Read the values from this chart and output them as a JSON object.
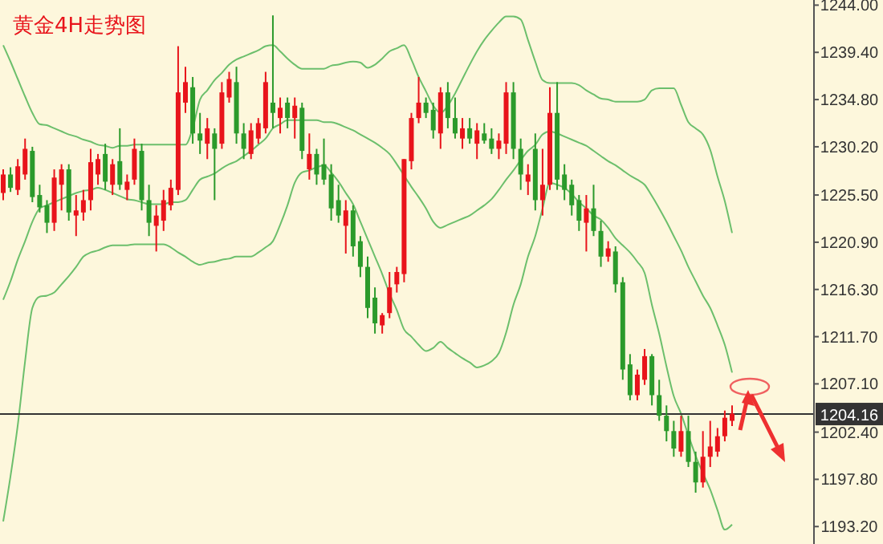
{
  "chart_data": {
    "type": "candlestick",
    "title": "黄金4H走势图",
    "categories": [
      null,
      null,
      null,
      null,
      null,
      null,
      null,
      null,
      null,
      null,
      null,
      null,
      null,
      null,
      null,
      null,
      null,
      null,
      null,
      null,
      null,
      null,
      null,
      null,
      null,
      null,
      null,
      null,
      null,
      null,
      null,
      null,
      null,
      null,
      null,
      null,
      null,
      null,
      null,
      null,
      null,
      null,
      null,
      null,
      null,
      null,
      null,
      null,
      null,
      null,
      null,
      null,
      null,
      null,
      null,
      null,
      null,
      null,
      null,
      null,
      null,
      null,
      null,
      null,
      null,
      null,
      null,
      null,
      null,
      null,
      null,
      null,
      null,
      null,
      null,
      null,
      null,
      null,
      null,
      null,
      null,
      null,
      null,
      null,
      null,
      null,
      null,
      null,
      null,
      null,
      null,
      null,
      null,
      null,
      null,
      null,
      null,
      null,
      null,
      null,
      null
    ],
    "ohlc": [
      [
        1225.7,
        1228.0,
        1225.0,
        1227.5
      ],
      [
        1227.5,
        1228.2,
        1225.8,
        1226.2
      ],
      [
        1226.0,
        1229.0,
        1225.5,
        1228.3
      ],
      [
        1227.5,
        1231.0,
        1227.0,
        1230.0
      ],
      [
        1229.8,
        1230.2,
        1224.8,
        1225.3
      ],
      [
        1225.5,
        1226.5,
        1223.8,
        1224.3
      ],
      [
        1224.5,
        1225.0,
        1221.8,
        1222.8
      ],
      [
        1222.8,
        1228.0,
        1222.0,
        1227.2
      ],
      [
        1226.5,
        1228.5,
        1224.0,
        1228.0
      ],
      [
        1228.0,
        1228.5,
        1223.0,
        1223.8
      ],
      [
        1223.5,
        1225.5,
        1221.5,
        1224.0
      ],
      [
        1223.8,
        1226.0,
        1223.0,
        1225.0
      ],
      [
        1225.0,
        1230.0,
        1224.0,
        1228.7
      ],
      [
        1227.5,
        1229.5,
        1226.5,
        1229.0
      ],
      [
        1229.5,
        1230.5,
        1226.0,
        1226.8
      ],
      [
        1226.5,
        1229.0,
        1225.5,
        1228.5
      ],
      [
        1228.8,
        1232.0,
        1226.0,
        1226.5
      ],
      [
        1226.0,
        1227.5,
        1225.0,
        1226.8
      ],
      [
        1227.0,
        1231.0,
        1226.5,
        1230.0
      ],
      [
        1229.8,
        1230.5,
        1224.0,
        1225.0
      ],
      [
        1225.0,
        1226.5,
        1221.5,
        1222.8
      ],
      [
        1222.5,
        1224.5,
        1220.0,
        1223.5
      ],
      [
        1223.0,
        1226.0,
        1222.0,
        1225.0
      ],
      [
        1224.5,
        1227.0,
        1224.0,
        1226.2
      ],
      [
        1226.0,
        1240.0,
        1225.5,
        1235.5
      ],
      [
        1234.5,
        1238.0,
        1233.5,
        1236.5
      ],
      [
        1236.0,
        1237.0,
        1230.5,
        1231.5
      ],
      [
        1231.5,
        1233.5,
        1229.5,
        1230.8
      ],
      [
        1230.5,
        1233.0,
        1229.0,
        1232.0
      ],
      [
        1231.5,
        1232.0,
        1225.0,
        1230.0
      ],
      [
        1230.5,
        1236.5,
        1230.0,
        1235.5
      ],
      [
        1235.0,
        1237.5,
        1234.5,
        1236.8
      ],
      [
        1236.5,
        1238.0,
        1230.5,
        1231.5
      ],
      [
        1231.5,
        1232.5,
        1229.0,
        1230.0
      ],
      [
        1229.5,
        1232.5,
        1229.0,
        1231.8
      ],
      [
        1231.0,
        1233.0,
        1230.5,
        1232.5
      ],
      [
        1232.0,
        1237.5,
        1231.5,
        1236.5
      ],
      [
        1234.5,
        1243.0,
        1232.0,
        1233.5
      ],
      [
        1233.0,
        1235.0,
        1231.5,
        1234.0
      ],
      [
        1234.5,
        1235.0,
        1232.0,
        1233.0
      ],
      [
        1233.0,
        1235.0,
        1231.0,
        1234.2
      ],
      [
        1234.0,
        1234.5,
        1229.0,
        1229.8
      ],
      [
        1228.0,
        1231.5,
        1227.0,
        1229.5
      ],
      [
        1229.5,
        1230.0,
        1226.5,
        1227.5
      ],
      [
        1228.5,
        1231.0,
        1226.5,
        1227.0
      ],
      [
        1227.5,
        1228.5,
        1223.0,
        1224.2
      ],
      [
        1225.0,
        1226.5,
        1222.8,
        1223.5
      ],
      [
        1222.5,
        1225.0,
        1219.8,
        1224.0
      ],
      [
        1224.0,
        1224.5,
        1219.5,
        1220.5
      ],
      [
        1221.0,
        1221.5,
        1217.5,
        1218.5
      ],
      [
        1218.5,
        1219.5,
        1213.5,
        1214.5
      ],
      [
        1215.5,
        1216.5,
        1212.0,
        1213.0
      ],
      [
        1212.8,
        1214.0,
        1212.0,
        1213.8
      ],
      [
        1214.0,
        1218.0,
        1213.5,
        1216.5
      ],
      [
        1216.8,
        1218.5,
        1216.0,
        1218.0
      ],
      [
        1217.8,
        1229.0,
        1217.0,
        1229.0
      ],
      [
        1228.8,
        1233.5,
        1228.0,
        1233.0
      ],
      [
        1233.0,
        1237.0,
        1232.5,
        1234.5
      ],
      [
        1234.5,
        1235.0,
        1233.0,
        1233.5
      ],
      [
        1233.8,
        1234.5,
        1231.0,
        1231.8
      ],
      [
        1231.5,
        1236.0,
        1230.0,
        1235.5
      ],
      [
        1235.5,
        1236.5,
        1232.0,
        1233.0
      ],
      [
        1233.0,
        1235.0,
        1231.0,
        1231.5
      ],
      [
        1231.0,
        1233.0,
        1230.0,
        1232.0
      ],
      [
        1232.0,
        1233.0,
        1230.5,
        1231.0
      ],
      [
        1230.5,
        1232.5,
        1229.0,
        1231.8
      ],
      [
        1231.5,
        1232.5,
        1230.5,
        1230.8
      ],
      [
        1231.0,
        1232.0,
        1229.5,
        1230.0
      ],
      [
        1230.0,
        1231.5,
        1229.0,
        1230.8
      ],
      [
        1230.5,
        1236.5,
        1229.5,
        1235.5
      ],
      [
        1235.5,
        1236.5,
        1229.0,
        1230.0
      ],
      [
        1230.0,
        1231.0,
        1226.0,
        1227.5
      ],
      [
        1226.8,
        1228.5,
        1225.5,
        1227.5
      ],
      [
        1230.0,
        1231.5,
        1224.0,
        1225.0
      ],
      [
        1225.0,
        1230.0,
        1223.5,
        1226.5
      ],
      [
        1226.5,
        1236.0,
        1226.0,
        1233.5
      ],
      [
        1233.5,
        1236.5,
        1226.0,
        1227.0
      ],
      [
        1227.5,
        1228.5,
        1225.0,
        1226.0
      ],
      [
        1226.5,
        1227.0,
        1223.5,
        1224.5
      ],
      [
        1225.0,
        1225.5,
        1222.0,
        1223.0
      ],
      [
        1222.8,
        1225.5,
        1220.0,
        1224.2
      ],
      [
        1224.2,
        1226.5,
        1221.5,
        1222.0
      ],
      [
        1222.0,
        1223.0,
        1218.5,
        1219.5
      ],
      [
        1219.5,
        1221.0,
        1219.0,
        1220.3
      ],
      [
        1220.0,
        1220.5,
        1216.0,
        1216.8
      ],
      [
        1217.0,
        1217.5,
        1207.5,
        1208.5
      ],
      [
        1209.0,
        1210.0,
        1205.5,
        1206.0
      ],
      [
        1206.0,
        1208.5,
        1205.5,
        1208.0
      ],
      [
        1207.5,
        1210.5,
        1207.0,
        1209.8
      ],
      [
        1209.8,
        1210.0,
        1205.0,
        1206.0
      ],
      [
        1206.0,
        1207.5,
        1203.5,
        1204.0
      ],
      [
        1204.0,
        1205.0,
        1201.5,
        1202.5
      ],
      [
        1202.5,
        1203.5,
        1200.0,
        1200.8
      ],
      [
        1200.5,
        1204.0,
        1200.0,
        1202.5
      ],
      [
        1202.5,
        1204.0,
        1199.0,
        1199.5
      ],
      [
        1199.5,
        1200.5,
        1196.5,
        1197.5
      ],
      [
        1197.5,
        1202.5,
        1197.0,
        1200.0
      ],
      [
        1200.0,
        1203.5,
        1199.0,
        1201.0
      ],
      [
        1200.5,
        1202.8,
        1200.0,
        1202.0
      ],
      [
        1202.0,
        1204.5,
        1201.5,
        1203.8
      ],
      [
        1203.5,
        1205.0,
        1203.0,
        1204.2
      ]
    ],
    "colors": [
      "#e8141b",
      "#2b9a2b",
      "#e8141b",
      "#e8141b",
      "#2b9a2b",
      "#2b9a2b",
      "#2b9a2b",
      "#e8141b",
      "#e8141b",
      "#2b9a2b",
      "#e8141b",
      "#e8141b",
      "#e8141b",
      "#e8141b",
      "#2b9a2b",
      "#e8141b",
      "#2b9a2b",
      "#e8141b",
      "#e8141b",
      "#2b9a2b",
      "#2b9a2b",
      "#e8141b",
      "#e8141b",
      "#e8141b",
      "#e8141b",
      "#e8141b",
      "#2b9a2b",
      "#2b9a2b",
      "#e8141b",
      "#2b9a2b",
      "#e8141b",
      "#e8141b",
      "#2b9a2b",
      "#2b9a2b",
      "#e8141b",
      "#e8141b",
      "#e8141b",
      "#2b9a2b",
      "#e8141b",
      "#2b9a2b",
      "#e8141b",
      "#2b9a2b",
      "#e8141b",
      "#2b9a2b",
      "#2b9a2b",
      "#2b9a2b",
      "#2b9a2b",
      "#e8141b",
      "#2b9a2b",
      "#2b9a2b",
      "#2b9a2b",
      "#2b9a2b",
      "#e8141b",
      "#e8141b",
      "#e8141b",
      "#e8141b",
      "#e8141b",
      "#e8141b",
      "#2b9a2b",
      "#2b9a2b",
      "#e8141b",
      "#2b9a2b",
      "#2b9a2b",
      "#e8141b",
      "#2b9a2b",
      "#e8141b",
      "#2b9a2b",
      "#2b9a2b",
      "#e8141b",
      "#e8141b",
      "#2b9a2b",
      "#2b9a2b",
      "#e8141b",
      "#2b9a2b",
      "#e8141b",
      "#e8141b",
      "#2b9a2b",
      "#2b9a2b",
      "#2b9a2b",
      "#2b9a2b",
      "#e8141b",
      "#2b9a2b",
      "#2b9a2b",
      "#e8141b",
      "#2b9a2b",
      "#2b9a2b",
      "#2b9a2b",
      "#e8141b",
      "#e8141b",
      "#2b9a2b",
      "#2b9a2b",
      "#2b9a2b",
      "#2b9a2b",
      "#e8141b",
      "#2b9a2b",
      "#2b9a2b",
      "#e8141b",
      "#e8141b",
      "#e8141b",
      "#e8141b",
      "#e8141b"
    ],
    "series": [
      {
        "type": "line",
        "color": "#6cbf6c",
        "values": [
          1240.1,
          1238.5,
          1236.8,
          1235.1,
          1233.5,
          1232.4,
          1232.3,
          1232.0,
          1231.7,
          1231.4,
          1231.2,
          1230.9,
          1230.7,
          1230.4,
          1230.3,
          1230.1,
          1230.3,
          1230.3,
          1230.4,
          1230.4,
          1230.4,
          1230.4,
          1230.4,
          1230.4,
          1230.4,
          1230.4,
          1232.0,
          1234.8,
          1235.7,
          1236.7,
          1237.4,
          1238.2,
          1238.7,
          1239.0,
          1239.3,
          1239.6,
          1240.0,
          1240.1,
          1239.5,
          1238.8,
          1238.2,
          1237.8,
          1237.8,
          1237.8,
          1237.8,
          1238.1,
          1238.2,
          1238.4,
          1238.5,
          1238.4,
          1237.9,
          1238.2,
          1238.8,
          1239.5,
          1239.8,
          1240.1,
          1238.7,
          1237.0,
          1235.6,
          1234.2,
          1233.5,
          1234.2,
          1235.4,
          1236.8,
          1238.2,
          1239.5,
          1240.6,
          1241.5,
          1242.3,
          1242.9,
          1242.9,
          1242.6,
          1240.6,
          1238.5,
          1236.7,
          1236.4,
          1236.4,
          1236.4,
          1236.4,
          1236.2,
          1235.7,
          1235.3,
          1234.9,
          1234.8,
          1234.6,
          1234.6,
          1234.6,
          1234.6,
          1234.8,
          1235.7,
          1235.9,
          1235.9,
          1235.9,
          1234.3,
          1232.6,
          1232.0,
          1231.4,
          1229.9,
          1227.3,
          1224.9,
          1221.8
        ]
      },
      {
        "type": "line",
        "color": "#6cbf6c",
        "values": [
          1215.3,
          1217.1,
          1219.2,
          1221.0,
          1222.9,
          1224.2,
          1224.5,
          1224.8,
          1225.1,
          1225.4,
          1225.7,
          1225.9,
          1226.0,
          1226.2,
          1226.0,
          1225.7,
          1225.4,
          1225.1,
          1225.0,
          1224.8,
          1224.6,
          1224.6,
          1224.6,
          1224.8,
          1224.8,
          1225.0,
          1226.0,
          1227.0,
          1227.3,
          1227.6,
          1228.1,
          1228.5,
          1228.8,
          1229.3,
          1229.8,
          1230.4,
          1231.0,
          1232.0,
          1232.4,
          1232.8,
          1232.8,
          1232.8,
          1232.8,
          1232.8,
          1232.6,
          1232.6,
          1232.4,
          1232.1,
          1231.8,
          1231.4,
          1231.0,
          1230.6,
          1230.1,
          1229.5,
          1228.5,
          1227.4,
          1226.3,
          1225.3,
          1224.2,
          1222.9,
          1222.3,
          1222.6,
          1222.9,
          1223.2,
          1223.5,
          1224.0,
          1224.5,
          1225.1,
          1226.0,
          1227.0,
          1227.9,
          1228.9,
          1229.8,
          1230.4,
          1231.4,
          1231.7,
          1231.5,
          1231.2,
          1230.9,
          1230.6,
          1230.3,
          1229.8,
          1229.3,
          1228.8,
          1228.4,
          1227.9,
          1227.4,
          1227.0,
          1226.5,
          1225.4,
          1224.2,
          1222.9,
          1221.5,
          1220.1,
          1218.5,
          1217.1,
          1215.7,
          1214.5,
          1212.8,
          1210.9,
          1208.2
        ]
      },
      {
        "type": "line",
        "color": "#6cbf6c",
        "values": [
          1193.7,
          1198.1,
          1203.1,
          1209.3,
          1214.5,
          1215.6,
          1215.7,
          1216.0,
          1216.8,
          1217.6,
          1218.5,
          1219.5,
          1219.9,
          1220.1,
          1220.4,
          1220.6,
          1220.6,
          1220.6,
          1220.7,
          1220.7,
          1220.7,
          1220.7,
          1220.7,
          1220.4,
          1219.9,
          1219.5,
          1219.0,
          1218.7,
          1218.9,
          1219.0,
          1219.2,
          1219.3,
          1219.5,
          1219.5,
          1219.5,
          1219.9,
          1220.4,
          1221.0,
          1222.6,
          1224.5,
          1226.7,
          1227.7,
          1227.9,
          1228.2,
          1228.4,
          1227.7,
          1226.8,
          1225.7,
          1224.6,
          1222.9,
          1221.2,
          1219.5,
          1217.8,
          1215.9,
          1214.3,
          1212.4,
          1211.7,
          1210.9,
          1210.3,
          1210.6,
          1211.2,
          1210.6,
          1210.1,
          1209.6,
          1209.2,
          1208.7,
          1208.9,
          1209.3,
          1210.1,
          1212.1,
          1214.8,
          1216.8,
          1219.5,
          1221.5,
          1224.2,
          1226.7,
          1226.5,
          1226.2,
          1225.6,
          1224.8,
          1224.2,
          1223.5,
          1223.1,
          1222.3,
          1221.3,
          1220.6,
          1219.9,
          1219.0,
          1217.9,
          1214.8,
          1212.0,
          1208.8,
          1205.9,
          1204.2,
          1202.1,
          1200.1,
          1198.4,
          1196.8,
          1194.8,
          1192.9,
          1193.4
        ]
      }
    ],
    "ylim": [
      1191.5,
      1244.5
    ],
    "yticks": [
      {
        "value": 1244.0,
        "label": "1244.00"
      },
      {
        "value": 1239.4,
        "label": "1239.40"
      },
      {
        "value": 1234.8,
        "label": "1234.80"
      },
      {
        "value": 1230.2,
        "label": "1230.20"
      },
      {
        "value": 1225.5,
        "label": "1225.50"
      },
      {
        "value": 1220.9,
        "label": "1220.90"
      },
      {
        "value": 1216.3,
        "label": "1216.30"
      },
      {
        "value": 1211.7,
        "label": "1211.70"
      },
      {
        "value": 1207.1,
        "label": "1207.10"
      },
      {
        "value": 1202.4,
        "label": "1202.40"
      },
      {
        "value": 1197.8,
        "label": "1197.80"
      },
      {
        "value": 1193.2,
        "label": "1193.20"
      }
    ],
    "ref_lines": [
      {
        "axis": "y",
        "value": 1204.16,
        "label": "1204.16",
        "color": "#333333"
      }
    ],
    "tick_labels": "y",
    "grid": false
  }
}
